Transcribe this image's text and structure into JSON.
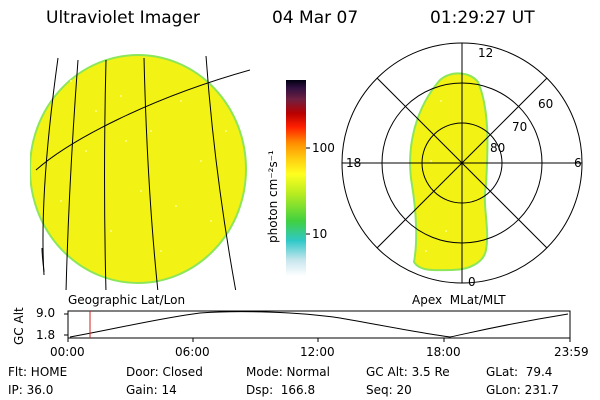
{
  "header": {
    "title": "Ultraviolet Imager",
    "date": "04 Mar 07",
    "time": "01:29:27 UT"
  },
  "colorbar": {
    "label": "photon cm⁻²s⁻¹",
    "ticks": [
      "100",
      "10"
    ]
  },
  "left_panel": {
    "caption": "Geographic Lat/Lon"
  },
  "right_panel": {
    "caption": "Apex  MLat/MLT",
    "mlt_labels": [
      "12",
      "18",
      "6",
      "0"
    ],
    "mlat_labels": [
      "60",
      "70",
      "80"
    ]
  },
  "altitude_plot": {
    "ylabel": "GC Alt",
    "yticks": [
      "9.0",
      "1.8"
    ],
    "xticks": [
      "00:00",
      "06:00",
      "12:00",
      "18:00",
      "23:59"
    ]
  },
  "info": {
    "flt": "Flt: HOME",
    "door": "Door: Closed",
    "mode": "Mode: Normal",
    "gcalt": "GC Alt: 3.5 Re",
    "glat": "GLat:  79.4",
    "ip": "IP: 36.0",
    "gain": "Gain: 14",
    "dsp": "Dsp:  166.8",
    "seq": "Seq: 20",
    "glon": "GLon: 231.7"
  },
  "colors": {
    "aurora_fill": "#f2f214",
    "aurora_edge": "#8ce65a",
    "marker": "#d22020"
  }
}
